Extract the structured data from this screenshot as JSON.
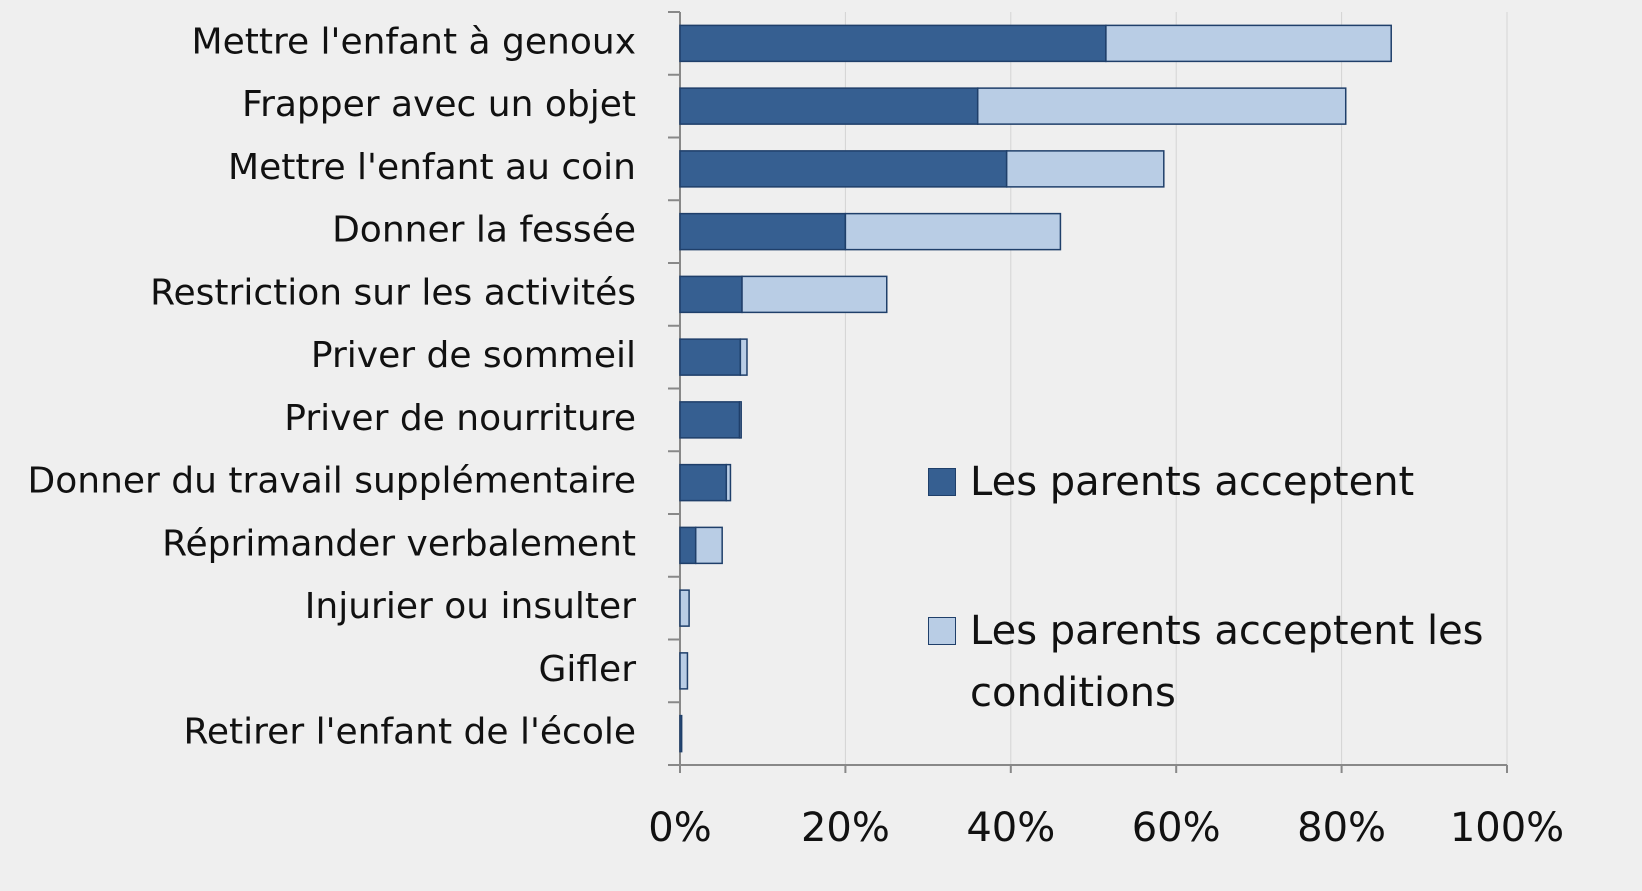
{
  "chart_data": {
    "type": "stacked-barh",
    "categories": [
      "Mettre l'enfant à genoux",
      "Frapper avec un objet",
      "Mettre l'enfant au coin",
      "Donner la fessée",
      "Restriction sur les activités",
      "Priver de sommeil",
      "Priver de nourriture",
      "Donner du travail supplémentaire",
      "Réprimander verbalement",
      "Injurier ou insulter",
      "Gifler",
      "Retirer l'enfant de l'école"
    ],
    "series": [
      {
        "name": "Les parents acceptent",
        "color": "#365f91",
        "values": [
          51.5,
          36,
          39.5,
          20,
          7.5,
          7.3,
          7.2,
          5.6,
          1.9,
          0,
          0,
          0.2
        ]
      },
      {
        "name": "Les parents acceptent les conditions",
        "color": "#b9cde5",
        "values": [
          34.5,
          44.5,
          19,
          26,
          17.5,
          0.8,
          0.2,
          0.5,
          3.2,
          1.1,
          0.9,
          0
        ]
      }
    ],
    "xlim": [
      0,
      100
    ],
    "xticks": [
      {
        "value": 0,
        "label": "0%"
      },
      {
        "value": 20,
        "label": "20%"
      },
      {
        "value": 40,
        "label": "40%"
      },
      {
        "value": 60,
        "label": "60%"
      },
      {
        "value": 80,
        "label": "80%"
      },
      {
        "value": 100,
        "label": "100%"
      }
    ],
    "grid": true
  }
}
